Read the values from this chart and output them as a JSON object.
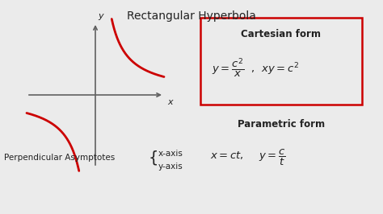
{
  "title": "Rectangular Hyperbola",
  "title_fontsize": 10,
  "bg_color": "#ebebeb",
  "curve_color": "#cc0000",
  "axis_color": "#606060",
  "text_color": "#222222",
  "cartesian_title": "Cartesian form",
  "cartesian_eq": "$y = \\dfrac{c^2}{x}$  ,  $xy = c^2$",
  "parametric_title": "Parametric form",
  "parametric_eq": "$x = ct,$    $y = \\dfrac{c}{t}$",
  "perp_text": "Perpendicular Asymptotes",
  "axis_label_x": "x-axis",
  "axis_label_y": "y-axis",
  "box_color": "#cc0000",
  "figwidth": 4.74,
  "figheight": 2.66,
  "dpi": 100
}
